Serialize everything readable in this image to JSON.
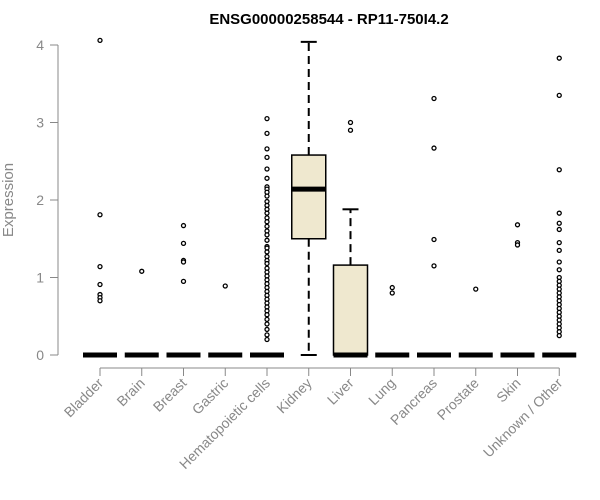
{
  "chart_data": {
    "type": "box",
    "title": "ENSG00000258544 - RP11-750I4.2",
    "ylabel": "Expression",
    "xlabel": "",
    "ylim": [
      0,
      4.1
    ],
    "yticks": [
      0,
      1,
      2,
      3,
      4
    ],
    "grid": false,
    "colors": {
      "box_fill": "#efe8cf",
      "stroke": "#000000",
      "axis": "#888888"
    },
    "categories": [
      "Bladder",
      "Brain",
      "Breast",
      "Gastric",
      "Hematopoietic cells",
      "Kidney",
      "Liver",
      "Lung",
      "Pancreas",
      "Prostate",
      "Skin",
      "Unknown / Other"
    ],
    "boxes": [
      {
        "name": "Bladder",
        "q1": 0,
        "median": 0,
        "q3": 0,
        "whisker_low": 0,
        "whisker_high": 0,
        "outliers": [
          4.06,
          1.81,
          1.14,
          0.91,
          0.78,
          0.74,
          0.7
        ]
      },
      {
        "name": "Brain",
        "q1": 0,
        "median": 0,
        "q3": 0,
        "whisker_low": 0,
        "whisker_high": 0,
        "outliers": [
          1.08
        ]
      },
      {
        "name": "Breast",
        "q1": 0,
        "median": 0,
        "q3": 0,
        "whisker_low": 0,
        "whisker_high": 0,
        "outliers": [
          1.67,
          1.44,
          1.22,
          1.2,
          0.95
        ]
      },
      {
        "name": "Gastric",
        "q1": 0,
        "median": 0,
        "q3": 0,
        "whisker_low": 0,
        "whisker_high": 0,
        "outliers": [
          0.89
        ]
      },
      {
        "name": "Hematopoietic cells",
        "q1": 0,
        "median": 0,
        "q3": 0,
        "whisker_low": 0,
        "whisker_high": 0,
        "outliers": [
          3.05,
          2.86,
          2.66,
          2.55,
          2.4,
          2.28,
          2.17,
          2.14,
          2.1,
          2.05,
          1.98,
          1.93,
          1.88,
          1.83,
          1.77,
          1.72,
          1.66,
          1.6,
          1.55,
          1.48,
          1.4,
          1.38,
          1.33,
          1.27,
          1.22,
          1.18,
          1.12,
          1.07,
          1.02,
          0.97,
          0.92,
          0.87,
          0.82,
          0.77,
          0.72,
          0.67,
          0.62,
          0.57,
          0.52,
          0.46,
          0.4,
          0.33,
          0.26,
          0.2
        ]
      },
      {
        "name": "Kidney",
        "q1": 1.5,
        "median": 2.14,
        "q3": 2.58,
        "whisker_low": 0,
        "whisker_high": 4.04,
        "outliers": []
      },
      {
        "name": "Liver",
        "q1": 0,
        "median": 0,
        "q3": 1.16,
        "whisker_low": 0,
        "whisker_high": 1.88,
        "outliers": [
          3.0,
          2.9
        ]
      },
      {
        "name": "Lung",
        "q1": 0,
        "median": 0,
        "q3": 0,
        "whisker_low": 0,
        "whisker_high": 0,
        "outliers": [
          0.87,
          0.8
        ]
      },
      {
        "name": "Pancreas",
        "q1": 0,
        "median": 0,
        "q3": 0,
        "whisker_low": 0,
        "whisker_high": 0,
        "outliers": [
          3.31,
          2.67,
          1.49,
          1.15
        ]
      },
      {
        "name": "Prostate",
        "q1": 0,
        "median": 0,
        "q3": 0,
        "whisker_low": 0,
        "whisker_high": 0,
        "outliers": [
          0.85
        ]
      },
      {
        "name": "Skin",
        "q1": 0,
        "median": 0,
        "q3": 0,
        "whisker_low": 0,
        "whisker_high": 0,
        "outliers": [
          1.68,
          1.45,
          1.42
        ]
      },
      {
        "name": "Unknown / Other",
        "q1": 0,
        "median": 0,
        "q3": 0,
        "whisker_low": 0,
        "whisker_high": 0,
        "outliers": [
          3.83,
          3.35,
          2.39,
          1.83,
          1.7,
          1.62,
          1.45,
          1.35,
          1.2,
          1.1,
          1.0,
          0.95,
          0.9,
          0.85,
          0.8,
          0.75,
          0.7,
          0.65,
          0.6,
          0.55,
          0.5,
          0.45,
          0.4,
          0.35,
          0.3,
          0.25
        ]
      }
    ]
  }
}
